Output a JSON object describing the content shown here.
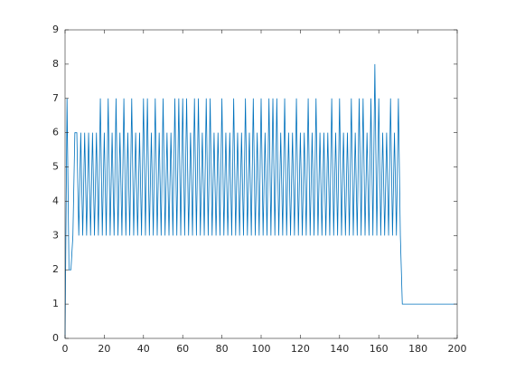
{
  "chart_data": {
    "type": "line",
    "x": [
      0,
      1,
      2,
      3,
      4,
      5,
      6,
      7,
      8,
      9,
      10,
      11,
      12,
      13,
      14,
      15,
      16,
      17,
      18,
      19,
      20,
      21,
      22,
      23,
      24,
      25,
      26,
      27,
      28,
      29,
      30,
      31,
      32,
      33,
      34,
      35,
      36,
      37,
      38,
      39,
      40,
      41,
      42,
      43,
      44,
      45,
      46,
      47,
      48,
      49,
      50,
      51,
      52,
      53,
      54,
      55,
      56,
      57,
      58,
      59,
      60,
      61,
      62,
      63,
      64,
      65,
      66,
      67,
      68,
      69,
      70,
      71,
      72,
      73,
      74,
      75,
      76,
      77,
      78,
      79,
      80,
      81,
      82,
      83,
      84,
      85,
      86,
      87,
      88,
      89,
      90,
      91,
      92,
      93,
      94,
      95,
      96,
      97,
      98,
      99,
      100,
      101,
      102,
      103,
      104,
      105,
      106,
      107,
      108,
      109,
      110,
      111,
      112,
      113,
      114,
      115,
      116,
      117,
      118,
      119,
      120,
      121,
      122,
      123,
      124,
      125,
      126,
      127,
      128,
      129,
      130,
      131,
      132,
      133,
      134,
      135,
      136,
      137,
      138,
      139,
      140,
      141,
      142,
      143,
      144,
      145,
      146,
      147,
      148,
      149,
      150,
      151,
      152,
      153,
      154,
      155,
      156,
      157,
      158,
      159,
      160,
      161,
      162,
      163,
      164,
      165,
      166,
      167,
      168,
      169,
      170,
      171,
      172,
      200
    ],
    "series": [
      {
        "color": "#0072bd",
        "values": [
          0,
          7,
          2,
          2,
          3,
          6,
          6,
          3,
          6,
          3,
          6,
          3,
          6,
          3,
          6,
          3,
          6,
          3,
          7,
          3,
          6,
          3,
          7,
          3,
          6,
          3,
          7,
          3,
          6,
          3,
          7,
          3,
          6,
          3,
          7,
          3,
          6,
          3,
          6,
          3,
          7,
          3,
          7,
          3,
          6,
          3,
          7,
          3,
          6,
          3,
          7,
          3,
          6,
          3,
          6,
          3,
          7,
          3,
          7,
          3,
          7,
          3,
          7,
          3,
          6,
          3,
          7,
          3,
          7,
          3,
          6,
          3,
          7,
          3,
          7,
          3,
          6,
          3,
          6,
          3,
          7,
          3,
          6,
          3,
          6,
          3,
          7,
          3,
          6,
          3,
          6,
          3,
          7,
          3,
          6,
          3,
          7,
          3,
          6,
          3,
          7,
          3,
          6,
          3,
          7,
          3,
          7,
          3,
          7,
          3,
          6,
          3,
          7,
          3,
          6,
          3,
          6,
          3,
          7,
          3,
          6,
          3,
          6,
          3,
          7,
          3,
          6,
          3,
          7,
          3,
          6,
          3,
          6,
          3,
          6,
          3,
          7,
          3,
          6,
          3,
          7,
          3,
          6,
          3,
          6,
          3,
          7,
          3,
          6,
          3,
          7,
          3,
          7,
          3,
          6,
          3,
          7,
          3,
          8,
          3,
          7,
          3,
          6,
          3,
          6,
          3,
          7,
          3,
          6,
          3,
          7,
          3,
          1,
          1
        ]
      }
    ],
    "xlim": [
      0,
      200
    ],
    "xticks": [
      0,
      20,
      40,
      60,
      80,
      100,
      120,
      140,
      160,
      180,
      200
    ],
    "ylim": [
      0,
      9
    ],
    "yticks": [
      0,
      1,
      2,
      3,
      4,
      5,
      6,
      7,
      8,
      9
    ]
  }
}
